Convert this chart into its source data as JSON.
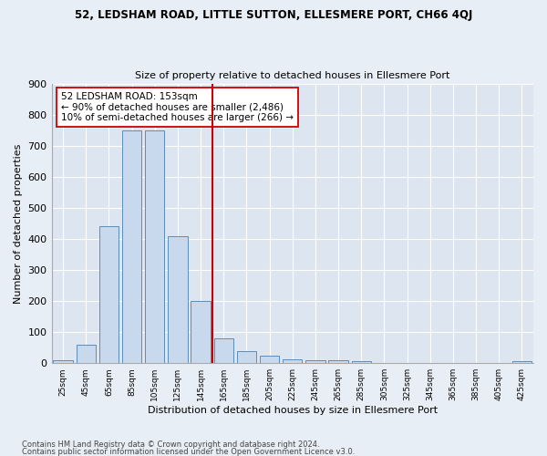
{
  "title": "52, LEDSHAM ROAD, LITTLE SUTTON, ELLESMERE PORT, CH66 4QJ",
  "subtitle": "Size of property relative to detached houses in Ellesmere Port",
  "xlabel": "Distribution of detached houses by size in Ellesmere Port",
  "ylabel": "Number of detached properties",
  "bar_color": "#c9d9ed",
  "bar_edge_color": "#5b8db8",
  "background_color": "#dde5f0",
  "grid_color": "#ffffff",
  "fig_background": "#e8eef5",
  "categories": [
    "25sqm",
    "45sqm",
    "65sqm",
    "85sqm",
    "105sqm",
    "125sqm",
    "145sqm",
    "165sqm",
    "185sqm",
    "205sqm",
    "225sqm",
    "245sqm",
    "265sqm",
    "285sqm",
    "305sqm",
    "325sqm",
    "345sqm",
    "365sqm",
    "385sqm",
    "405sqm",
    "425sqm"
  ],
  "values": [
    10,
    60,
    440,
    750,
    750,
    410,
    200,
    80,
    40,
    25,
    12,
    10,
    10,
    6,
    0,
    0,
    0,
    0,
    0,
    0,
    6
  ],
  "vline_x_index": 6.5,
  "vline_color": "#cc0000",
  "annotation_text": "52 LEDSHAM ROAD: 153sqm\n← 90% of detached houses are smaller (2,486)\n10% of semi-detached houses are larger (266) →",
  "annotation_box_color": "#ffffff",
  "annotation_box_edge": "#cc0000",
  "ylim": [
    0,
    900
  ],
  "yticks": [
    0,
    100,
    200,
    300,
    400,
    500,
    600,
    700,
    800,
    900
  ],
  "footnote1": "Contains HM Land Registry data © Crown copyright and database right 2024.",
  "footnote2": "Contains public sector information licensed under the Open Government Licence v3.0."
}
